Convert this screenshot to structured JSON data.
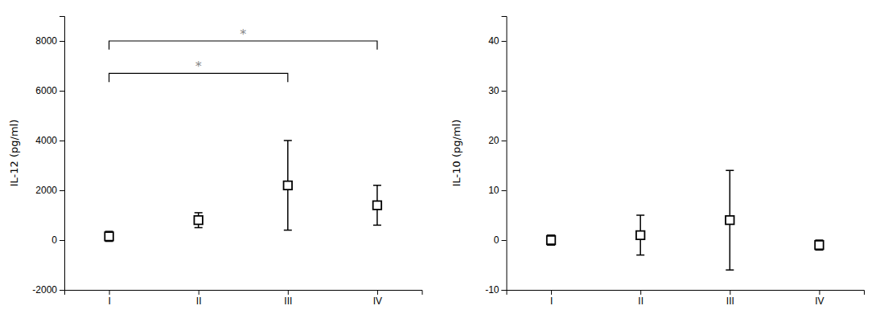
{
  "chart_data": [
    {
      "type": "scatter",
      "categories": [
        "I",
        "II",
        "III",
        "IV"
      ],
      "values": [
        150,
        800,
        2200,
        1400
      ],
      "errors": [
        200,
        300,
        1800,
        800
      ],
      "marker": "square",
      "color": "black",
      "y_label": "IL-12 (pg/ml)",
      "ylim": [
        -2000,
        9000
      ],
      "yticks": [
        -2000,
        0,
        2000,
        4000,
        6000,
        8000
      ],
      "grid": false,
      "annotations": [
        {
          "x1": "I",
          "x2": "III",
          "y": 6700,
          "drop": 350,
          "label": "*",
          "color": "#888888"
        },
        {
          "x1": "I",
          "x2": "IV",
          "y": 8000,
          "drop": 350,
          "label": "*",
          "color": "#888888"
        }
      ]
    },
    {
      "type": "scatter",
      "categories": [
        "I",
        "II",
        "III",
        "IV"
      ],
      "values": [
        0,
        1,
        4,
        -1
      ],
      "errors": [
        1,
        4,
        10,
        1
      ],
      "marker": "square",
      "color": "black",
      "y_label": "IL-10 (pg/ml)",
      "ylim": [
        -10,
        45
      ],
      "yticks": [
        -10,
        0,
        10,
        20,
        30,
        40
      ],
      "grid": false
    }
  ]
}
